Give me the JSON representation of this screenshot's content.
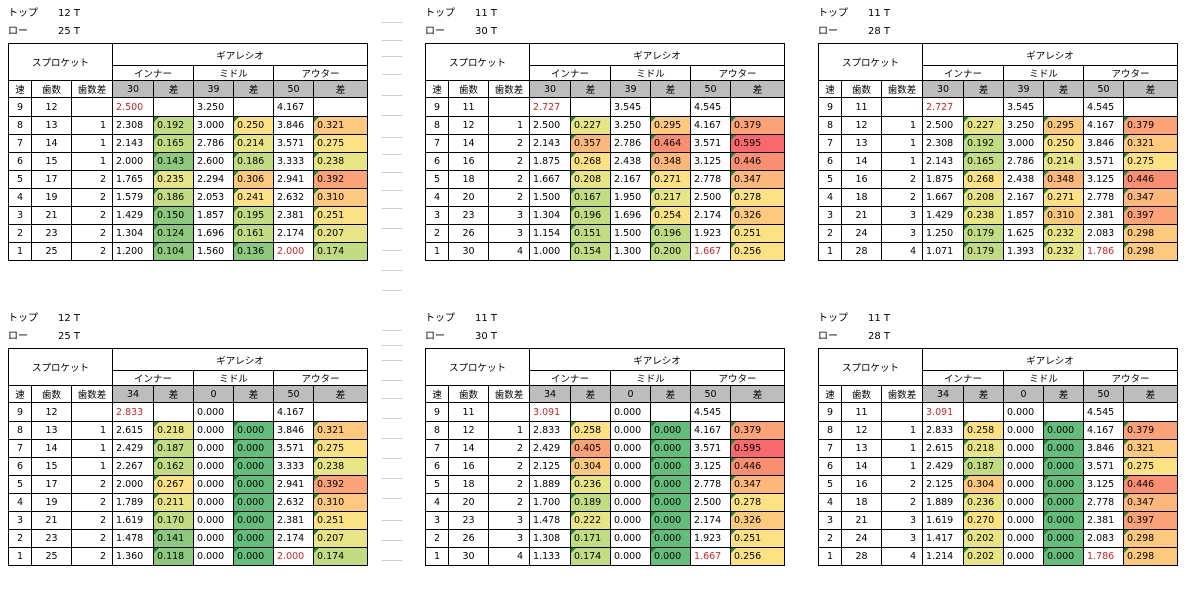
{
  "labels": {
    "top": "トップ",
    "low": "ロー",
    "sprocket": "スプロケット",
    "gear_ratio": "ギアレシオ",
    "inner": "インナー",
    "middle": "ミドル",
    "outer": "アウター",
    "speed": "速",
    "teeth": "歯数",
    "teeth_diff": "歯数差",
    "diff": "差"
  },
  "tables": [
    {
      "top": "12 T",
      "low": "25 T",
      "chainrings": [
        "30",
        "39",
        "50"
      ],
      "rows": [
        {
          "speed": "9",
          "teeth": "12",
          "tdiff": "",
          "inner": "2.500",
          "inner_d": "",
          "mid": "3.250",
          "mid_d": "",
          "outer": "4.167",
          "outer_d": "",
          "inner_red": true,
          "outer_red": false
        },
        {
          "speed": "8",
          "teeth": "13",
          "tdiff": "1",
          "inner": "2.308",
          "inner_d": "0.192",
          "mid": "3.000",
          "mid_d": "0.250",
          "outer": "3.846",
          "outer_d": "0.321"
        },
        {
          "speed": "7",
          "teeth": "14",
          "tdiff": "1",
          "inner": "2.143",
          "inner_d": "0.165",
          "mid": "2.786",
          "mid_d": "0.214",
          "outer": "3.571",
          "outer_d": "0.275"
        },
        {
          "speed": "6",
          "teeth": "15",
          "tdiff": "1",
          "inner": "2.000",
          "inner_d": "0.143",
          "mid": "2.600",
          "mid_d": "0.186",
          "outer": "3.333",
          "outer_d": "0.238"
        },
        {
          "speed": "5",
          "teeth": "17",
          "tdiff": "2",
          "inner": "1.765",
          "inner_d": "0.235",
          "mid": "2.294",
          "mid_d": "0.306",
          "outer": "2.941",
          "outer_d": "0.392"
        },
        {
          "speed": "4",
          "teeth": "19",
          "tdiff": "2",
          "inner": "1.579",
          "inner_d": "0.186",
          "mid": "2.053",
          "mid_d": "0.241",
          "outer": "2.632",
          "outer_d": "0.310"
        },
        {
          "speed": "3",
          "teeth": "21",
          "tdiff": "2",
          "inner": "1.429",
          "inner_d": "0.150",
          "mid": "1.857",
          "mid_d": "0.195",
          "outer": "2.381",
          "outer_d": "0.251"
        },
        {
          "speed": "2",
          "teeth": "23",
          "tdiff": "2",
          "inner": "1.304",
          "inner_d": "0.124",
          "mid": "1.696",
          "mid_d": "0.161",
          "outer": "2.174",
          "outer_d": "0.207"
        },
        {
          "speed": "1",
          "teeth": "25",
          "tdiff": "2",
          "inner": "1.200",
          "inner_d": "0.104",
          "mid": "1.560",
          "mid_d": "0.136",
          "outer": "2.000",
          "outer_d": "0.174",
          "outer_red": true
        }
      ]
    },
    {
      "top": "11 T",
      "low": "30 T",
      "chainrings": [
        "30",
        "39",
        "50"
      ],
      "rows": [
        {
          "speed": "9",
          "teeth": "11",
          "tdiff": "",
          "inner": "2.727",
          "inner_d": "",
          "mid": "3.545",
          "mid_d": "",
          "outer": "4.545",
          "outer_d": "",
          "inner_red": true
        },
        {
          "speed": "8",
          "teeth": "12",
          "tdiff": "1",
          "inner": "2.500",
          "inner_d": "0.227",
          "mid": "3.250",
          "mid_d": "0.295",
          "outer": "4.167",
          "outer_d": "0.379"
        },
        {
          "speed": "7",
          "teeth": "14",
          "tdiff": "2",
          "inner": "2.143",
          "inner_d": "0.357",
          "mid": "2.786",
          "mid_d": "0.464",
          "outer": "3.571",
          "outer_d": "0.595"
        },
        {
          "speed": "6",
          "teeth": "16",
          "tdiff": "2",
          "inner": "1.875",
          "inner_d": "0.268",
          "mid": "2.438",
          "mid_d": "0.348",
          "outer": "3.125",
          "outer_d": "0.446"
        },
        {
          "speed": "5",
          "teeth": "18",
          "tdiff": "2",
          "inner": "1.667",
          "inner_d": "0.208",
          "mid": "2.167",
          "mid_d": "0.271",
          "outer": "2.778",
          "outer_d": "0.347"
        },
        {
          "speed": "4",
          "teeth": "20",
          "tdiff": "2",
          "inner": "1.500",
          "inner_d": "0.167",
          "mid": "1.950",
          "mid_d": "0.217",
          "outer": "2.500",
          "outer_d": "0.278"
        },
        {
          "speed": "3",
          "teeth": "23",
          "tdiff": "3",
          "inner": "1.304",
          "inner_d": "0.196",
          "mid": "1.696",
          "mid_d": "0.254",
          "outer": "2.174",
          "outer_d": "0.326"
        },
        {
          "speed": "2",
          "teeth": "26",
          "tdiff": "3",
          "inner": "1.154",
          "inner_d": "0.151",
          "mid": "1.500",
          "mid_d": "0.196",
          "outer": "1.923",
          "outer_d": "0.251"
        },
        {
          "speed": "1",
          "teeth": "30",
          "tdiff": "4",
          "inner": "1.000",
          "inner_d": "0.154",
          "mid": "1.300",
          "mid_d": "0.200",
          "outer": "1.667",
          "outer_d": "0.256",
          "outer_red": true
        }
      ]
    },
    {
      "top": "11 T",
      "low": "28 T",
      "chainrings": [
        "30",
        "39",
        "50"
      ],
      "rows": [
        {
          "speed": "9",
          "teeth": "11",
          "tdiff": "",
          "inner": "2.727",
          "inner_d": "",
          "mid": "3.545",
          "mid_d": "",
          "outer": "4.545",
          "outer_d": "",
          "inner_red": true
        },
        {
          "speed": "8",
          "teeth": "12",
          "tdiff": "1",
          "inner": "2.500",
          "inner_d": "0.227",
          "mid": "3.250",
          "mid_d": "0.295",
          "outer": "4.167",
          "outer_d": "0.379"
        },
        {
          "speed": "7",
          "teeth": "13",
          "tdiff": "1",
          "inner": "2.308",
          "inner_d": "0.192",
          "mid": "3.000",
          "mid_d": "0.250",
          "outer": "3.846",
          "outer_d": "0.321"
        },
        {
          "speed": "6",
          "teeth": "14",
          "tdiff": "1",
          "inner": "2.143",
          "inner_d": "0.165",
          "mid": "2.786",
          "mid_d": "0.214",
          "outer": "3.571",
          "outer_d": "0.275"
        },
        {
          "speed": "5",
          "teeth": "16",
          "tdiff": "2",
          "inner": "1.875",
          "inner_d": "0.268",
          "mid": "2.438",
          "mid_d": "0.348",
          "outer": "3.125",
          "outer_d": "0.446"
        },
        {
          "speed": "4",
          "teeth": "18",
          "tdiff": "2",
          "inner": "1.667",
          "inner_d": "0.208",
          "mid": "2.167",
          "mid_d": "0.271",
          "outer": "2.778",
          "outer_d": "0.347"
        },
        {
          "speed": "3",
          "teeth": "21",
          "tdiff": "3",
          "inner": "1.429",
          "inner_d": "0.238",
          "mid": "1.857",
          "mid_d": "0.310",
          "outer": "2.381",
          "outer_d": "0.397"
        },
        {
          "speed": "2",
          "teeth": "24",
          "tdiff": "3",
          "inner": "1.250",
          "inner_d": "0.179",
          "mid": "1.625",
          "mid_d": "0.232",
          "outer": "2.083",
          "outer_d": "0.298"
        },
        {
          "speed": "1",
          "teeth": "28",
          "tdiff": "4",
          "inner": "1.071",
          "inner_d": "0.179",
          "mid": "1.393",
          "mid_d": "0.232",
          "outer": "1.786",
          "outer_d": "0.298",
          "outer_red": true
        }
      ]
    },
    {
      "top": "12 T",
      "low": "25 T",
      "chainrings": [
        "34",
        "0",
        "50"
      ],
      "rows": [
        {
          "speed": "9",
          "teeth": "12",
          "tdiff": "",
          "inner": "2.833",
          "inner_d": "",
          "mid": "0.000",
          "mid_d": "",
          "outer": "4.167",
          "outer_d": "",
          "inner_red": true
        },
        {
          "speed": "8",
          "teeth": "13",
          "tdiff": "1",
          "inner": "2.615",
          "inner_d": "0.218",
          "mid": "0.000",
          "mid_d": "0.000",
          "outer": "3.846",
          "outer_d": "0.321"
        },
        {
          "speed": "7",
          "teeth": "14",
          "tdiff": "1",
          "inner": "2.429",
          "inner_d": "0.187",
          "mid": "0.000",
          "mid_d": "0.000",
          "outer": "3.571",
          "outer_d": "0.275"
        },
        {
          "speed": "6",
          "teeth": "15",
          "tdiff": "1",
          "inner": "2.267",
          "inner_d": "0.162",
          "mid": "0.000",
          "mid_d": "0.000",
          "outer": "3.333",
          "outer_d": "0.238"
        },
        {
          "speed": "5",
          "teeth": "17",
          "tdiff": "2",
          "inner": "2.000",
          "inner_d": "0.267",
          "mid": "0.000",
          "mid_d": "0.000",
          "outer": "2.941",
          "outer_d": "0.392"
        },
        {
          "speed": "4",
          "teeth": "19",
          "tdiff": "2",
          "inner": "1.789",
          "inner_d": "0.211",
          "mid": "0.000",
          "mid_d": "0.000",
          "outer": "2.632",
          "outer_d": "0.310"
        },
        {
          "speed": "3",
          "teeth": "21",
          "tdiff": "2",
          "inner": "1.619",
          "inner_d": "0.170",
          "mid": "0.000",
          "mid_d": "0.000",
          "outer": "2.381",
          "outer_d": "0.251"
        },
        {
          "speed": "2",
          "teeth": "23",
          "tdiff": "2",
          "inner": "1.478",
          "inner_d": "0.141",
          "mid": "0.000",
          "mid_d": "0.000",
          "outer": "2.174",
          "outer_d": "0.207"
        },
        {
          "speed": "1",
          "teeth": "25",
          "tdiff": "2",
          "inner": "1.360",
          "inner_d": "0.118",
          "mid": "0.000",
          "mid_d": "0.000",
          "outer": "2.000",
          "outer_d": "0.174",
          "outer_red": true
        }
      ]
    },
    {
      "top": "11 T",
      "low": "30 T",
      "chainrings": [
        "34",
        "0",
        "50"
      ],
      "rows": [
        {
          "speed": "9",
          "teeth": "11",
          "tdiff": "",
          "inner": "3.091",
          "inner_d": "",
          "mid": "0.000",
          "mid_d": "",
          "outer": "4.545",
          "outer_d": "",
          "inner_red": true
        },
        {
          "speed": "8",
          "teeth": "12",
          "tdiff": "1",
          "inner": "2.833",
          "inner_d": "0.258",
          "mid": "0.000",
          "mid_d": "0.000",
          "outer": "4.167",
          "outer_d": "0.379"
        },
        {
          "speed": "7",
          "teeth": "14",
          "tdiff": "2",
          "inner": "2.429",
          "inner_d": "0.405",
          "mid": "0.000",
          "mid_d": "0.000",
          "outer": "3.571",
          "outer_d": "0.595"
        },
        {
          "speed": "6",
          "teeth": "16",
          "tdiff": "2",
          "inner": "2.125",
          "inner_d": "0.304",
          "mid": "0.000",
          "mid_d": "0.000",
          "outer": "3.125",
          "outer_d": "0.446"
        },
        {
          "speed": "5",
          "teeth": "18",
          "tdiff": "2",
          "inner": "1.889",
          "inner_d": "0.236",
          "mid": "0.000",
          "mid_d": "0.000",
          "outer": "2.778",
          "outer_d": "0.347"
        },
        {
          "speed": "4",
          "teeth": "20",
          "tdiff": "2",
          "inner": "1.700",
          "inner_d": "0.189",
          "mid": "0.000",
          "mid_d": "0.000",
          "outer": "2.500",
          "outer_d": "0.278"
        },
        {
          "speed": "3",
          "teeth": "23",
          "tdiff": "3",
          "inner": "1.478",
          "inner_d": "0.222",
          "mid": "0.000",
          "mid_d": "0.000",
          "outer": "2.174",
          "outer_d": "0.326"
        },
        {
          "speed": "2",
          "teeth": "26",
          "tdiff": "3",
          "inner": "1.308",
          "inner_d": "0.171",
          "mid": "0.000",
          "mid_d": "0.000",
          "outer": "1.923",
          "outer_d": "0.251"
        },
        {
          "speed": "1",
          "teeth": "30",
          "tdiff": "4",
          "inner": "1.133",
          "inner_d": "0.174",
          "mid": "0.000",
          "mid_d": "0.000",
          "outer": "1.667",
          "outer_d": "0.256",
          "outer_red": true
        }
      ]
    },
    {
      "top": "11 T",
      "low": "28 T",
      "chainrings": [
        "34",
        "0",
        "50"
      ],
      "rows": [
        {
          "speed": "9",
          "teeth": "11",
          "tdiff": "",
          "inner": "3.091",
          "inner_d": "",
          "mid": "0.000",
          "mid_d": "",
          "outer": "4.545",
          "outer_d": "",
          "inner_red": true
        },
        {
          "speed": "8",
          "teeth": "12",
          "tdiff": "1",
          "inner": "2.833",
          "inner_d": "0.258",
          "mid": "0.000",
          "mid_d": "0.000",
          "outer": "4.167",
          "outer_d": "0.379"
        },
        {
          "speed": "7",
          "teeth": "13",
          "tdiff": "1",
          "inner": "2.615",
          "inner_d": "0.218",
          "mid": "0.000",
          "mid_d": "0.000",
          "outer": "3.846",
          "outer_d": "0.321"
        },
        {
          "speed": "6",
          "teeth": "14",
          "tdiff": "1",
          "inner": "2.429",
          "inner_d": "0.187",
          "mid": "0.000",
          "mid_d": "0.000",
          "outer": "3.571",
          "outer_d": "0.275"
        },
        {
          "speed": "5",
          "teeth": "16",
          "tdiff": "2",
          "inner": "2.125",
          "inner_d": "0.304",
          "mid": "0.000",
          "mid_d": "0.000",
          "outer": "3.125",
          "outer_d": "0.446"
        },
        {
          "speed": "4",
          "teeth": "18",
          "tdiff": "2",
          "inner": "1.889",
          "inner_d": "0.236",
          "mid": "0.000",
          "mid_d": "0.000",
          "outer": "2.778",
          "outer_d": "0.347"
        },
        {
          "speed": "3",
          "teeth": "21",
          "tdiff": "3",
          "inner": "1.619",
          "inner_d": "0.270",
          "mid": "0.000",
          "mid_d": "0.000",
          "outer": "2.381",
          "outer_d": "0.397"
        },
        {
          "speed": "2",
          "teeth": "24",
          "tdiff": "3",
          "inner": "1.417",
          "inner_d": "0.202",
          "mid": "0.000",
          "mid_d": "0.000",
          "outer": "2.083",
          "outer_d": "0.298"
        },
        {
          "speed": "1",
          "teeth": "28",
          "tdiff": "4",
          "inner": "1.214",
          "inner_d": "0.202",
          "mid": "0.000",
          "mid_d": "0.000",
          "outer": "1.786",
          "outer_d": "0.298",
          "outer_red": true
        }
      ]
    }
  ],
  "colors": {
    "header_gray": "#bdbdbd",
    "ratio_red": "#e02020",
    "flag_green": "#1a8a2a",
    "diff_scale": [
      {
        "max": 0.0005,
        "color": "#63be7b"
      },
      {
        "max": 0.15,
        "color": "#8cc97c"
      },
      {
        "max": 0.2,
        "color": "#c2dc81"
      },
      {
        "max": 0.24,
        "color": "#e8e584"
      },
      {
        "max": 0.28,
        "color": "#fde283"
      },
      {
        "max": 0.33,
        "color": "#fdc97d"
      },
      {
        "max": 0.37,
        "color": "#fcb87a"
      },
      {
        "max": 0.42,
        "color": "#fba276"
      },
      {
        "max": 0.5,
        "color": "#f98f71"
      },
      {
        "max": 9.99,
        "color": "#f8696b"
      }
    ]
  }
}
